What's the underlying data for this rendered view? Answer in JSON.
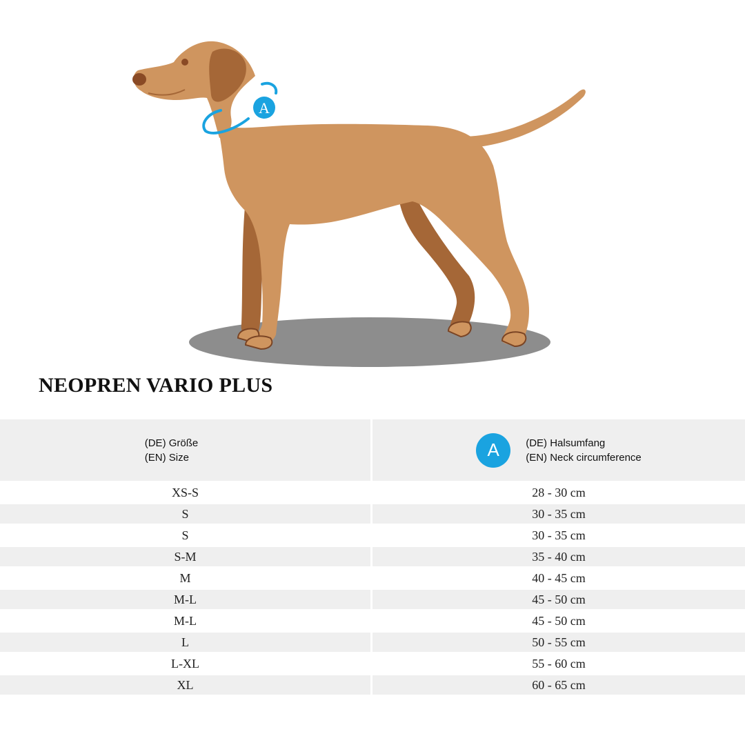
{
  "illustration": {
    "marker_label": "A"
  },
  "title": "NEOPREN VARIO PLUS",
  "header": {
    "size_de": "(DE) Größe",
    "size_en": "(EN) Size",
    "badge": "A",
    "neck_de": "(DE) Halsumfang",
    "neck_en": "(EN) Neck circumference"
  },
  "rows": [
    {
      "size": "XS-S",
      "neck": "28 - 30 cm"
    },
    {
      "size": "S",
      "neck": "30 - 35 cm"
    },
    {
      "size": "S",
      "neck": "30 - 35 cm"
    },
    {
      "size": "S-M",
      "neck": "35 - 40 cm"
    },
    {
      "size": "M",
      "neck": "40 - 45 cm"
    },
    {
      "size": "M-L",
      "neck": "45 - 50 cm"
    },
    {
      "size": "M-L",
      "neck": "45 - 50 cm"
    },
    {
      "size": "L",
      "neck": "50 - 55 cm"
    },
    {
      "size": "L-XL",
      "neck": "55 - 60 cm"
    },
    {
      "size": "XL",
      "neck": "60 - 65 cm"
    }
  ],
  "colors": {
    "dog_body": "#cf955f",
    "dog_shadow": "#a56737",
    "ground": "#8d8d8d",
    "accent": "#1aa3e0",
    "row_alt": "#efefef"
  }
}
